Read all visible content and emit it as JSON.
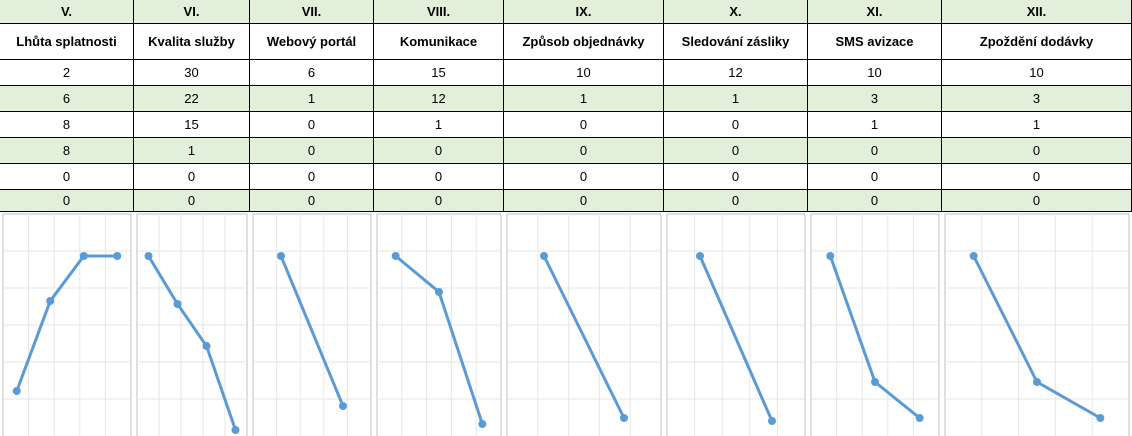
{
  "table": {
    "columns": [
      {
        "numeral": "V.",
        "name": "Lhůta splatnosti",
        "values": [
          2,
          6,
          8,
          8,
          0,
          0
        ]
      },
      {
        "numeral": "VI.",
        "name": "Kvalita služby",
        "values": [
          30,
          22,
          15,
          1,
          0,
          0
        ]
      },
      {
        "numeral": "VII.",
        "name": "Webový portál",
        "values": [
          6,
          1,
          0,
          0,
          0,
          0
        ]
      },
      {
        "numeral": "VIII.",
        "name": "Komunikace",
        "values": [
          15,
          12,
          1,
          0,
          0,
          0
        ]
      },
      {
        "numeral": "IX.",
        "name": "Způsob objednávky",
        "values": [
          10,
          1,
          0,
          0,
          0,
          0
        ]
      },
      {
        "numeral": "X.",
        "name": "Sledování zásliky",
        "values": [
          12,
          1,
          0,
          0,
          0,
          0
        ]
      },
      {
        "numeral": "XI.",
        "name": "SMS avizace",
        "values": [
          10,
          3,
          1,
          0,
          0,
          0
        ]
      },
      {
        "numeral": "XII.",
        "name": "Zpoždění dodávky",
        "values": [
          10,
          3,
          1,
          0,
          0,
          0
        ]
      }
    ]
  },
  "chart_data": {
    "type": "line",
    "color": "#5b9bd5"
  }
}
